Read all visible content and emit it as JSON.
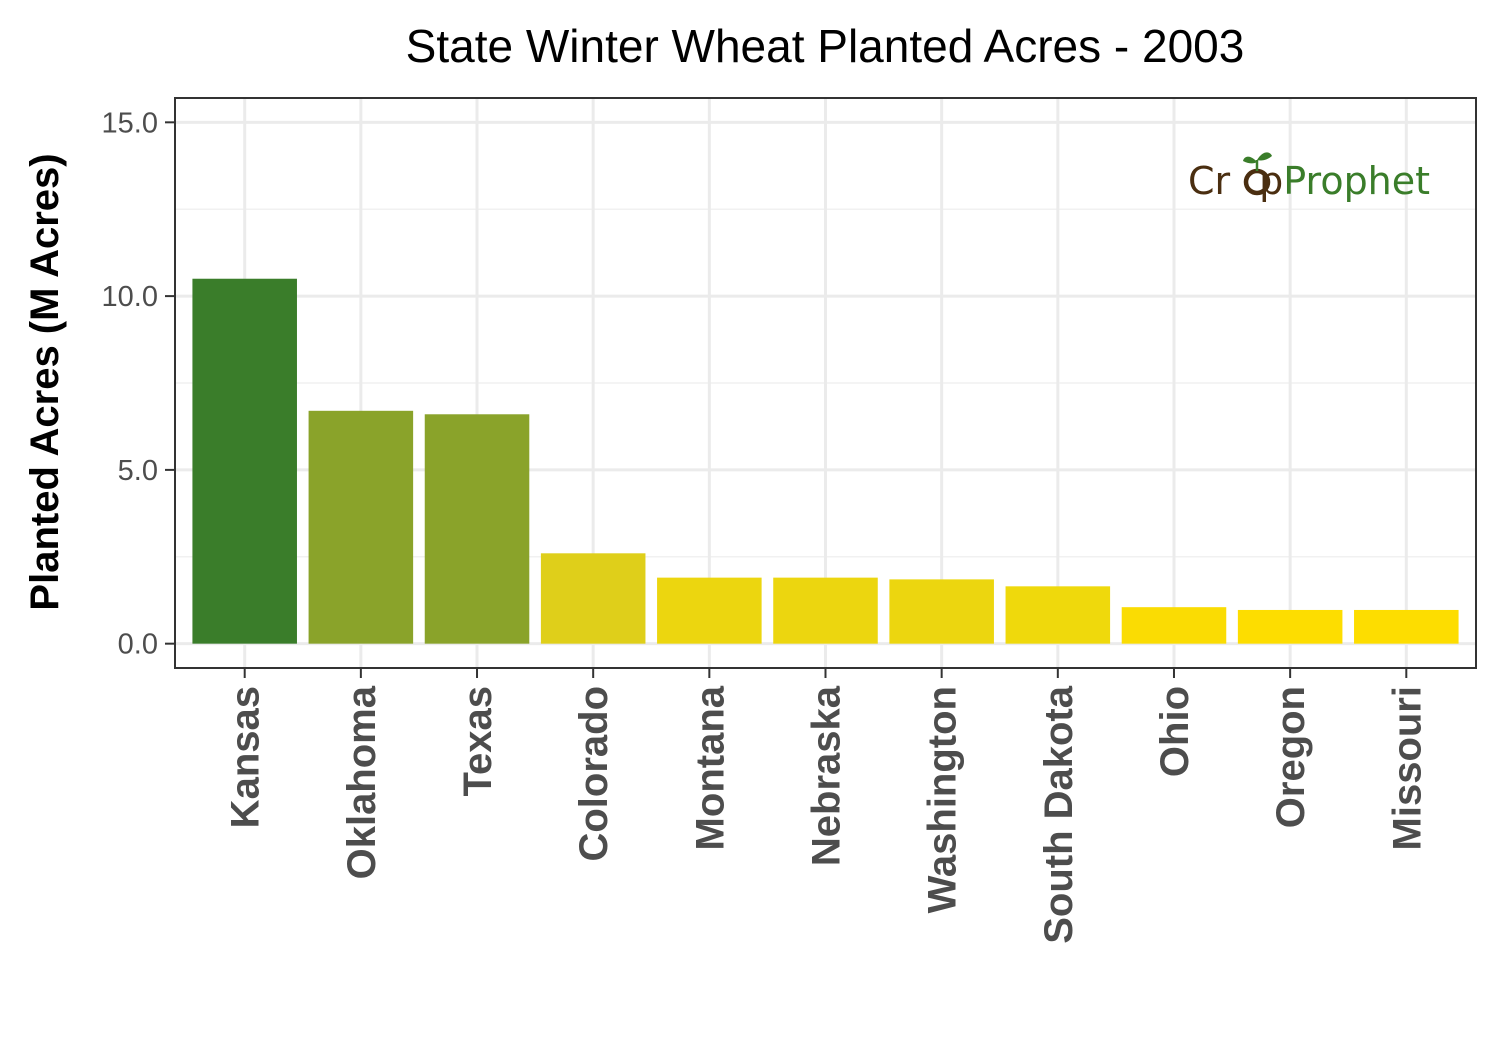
{
  "chart_data": {
    "type": "bar",
    "title": "State Winter Wheat Planted Acres - 2003",
    "xlabel": "",
    "ylabel": "Planted Acres (M Acres)",
    "ylim": [
      -0.7,
      15.7
    ],
    "yticks": [
      0,
      5,
      10,
      15
    ],
    "ytick_labels": [
      "0.0",
      "5.0",
      "10.0",
      "15.0"
    ],
    "grid": true,
    "legend": "none",
    "categories": [
      "Kansas",
      "Oklahoma",
      "Texas",
      "Colorado",
      "Montana",
      "Nebraska",
      "Washington",
      "South Dakota",
      "Ohio",
      "Oregon",
      "Missouri"
    ],
    "values": [
      10.5,
      6.7,
      6.6,
      2.6,
      1.9,
      1.9,
      1.85,
      1.65,
      1.05,
      0.97,
      0.97
    ],
    "colors": [
      "#3a7d2a",
      "#8aa32a",
      "#8aa32a",
      "#dfcf1a",
      "#ecd60f",
      "#ecd60f",
      "#ecd60f",
      "#efd90c",
      "#fadc03",
      "#fddd00",
      "#fddd00"
    ]
  },
  "logo": {
    "part1": "Cr",
    "part2": "p",
    "part3": "Prophet",
    "brand_brown": "#4a2e10",
    "brand_green": "#3a7d2a"
  }
}
